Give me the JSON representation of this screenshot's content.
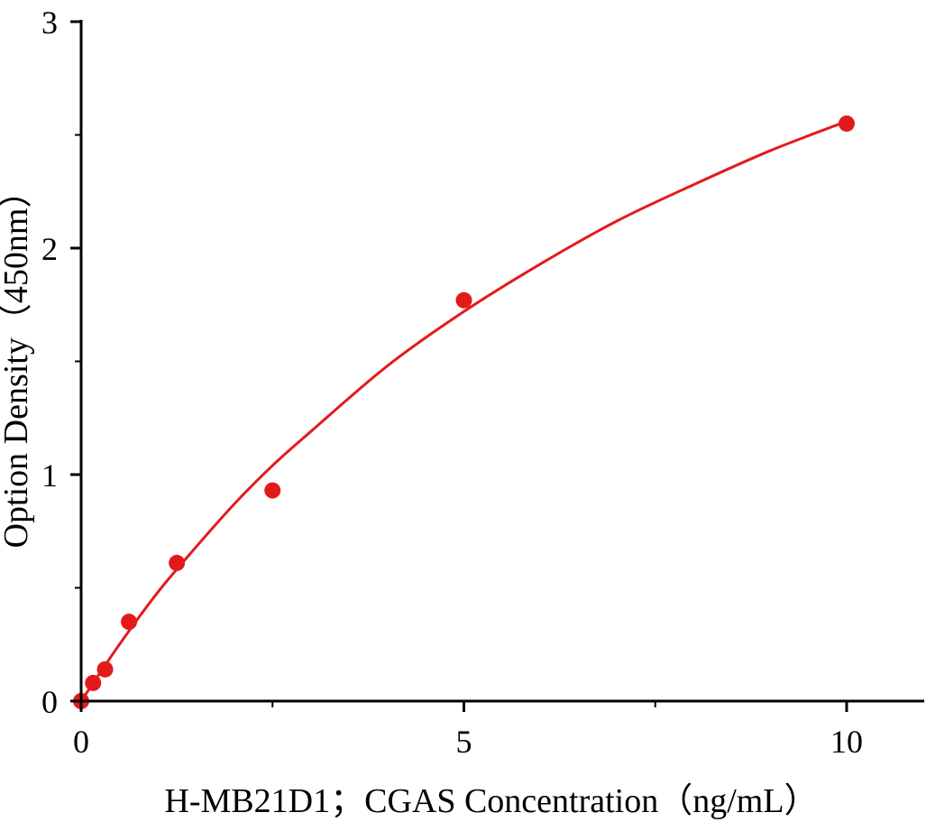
{
  "chart_data": {
    "type": "scatter",
    "title": "",
    "xlabel": "H-MB21D1；CGAS Concentration（ng/mL）",
    "ylabel": "Option Density（450nm）",
    "xlim": [
      0,
      11
    ],
    "ylim": [
      0,
      3
    ],
    "x_ticks": [
      0,
      5,
      10
    ],
    "x_tick_labels": [
      "0",
      "5",
      "10"
    ],
    "x_minor_ticks": [
      2.5,
      7.5
    ],
    "y_ticks": [
      0,
      1,
      2,
      3
    ],
    "y_tick_labels": [
      "0",
      "1",
      "2",
      "3"
    ],
    "y_minor_ticks": [
      0.5,
      1.5,
      2.5
    ],
    "grid": false,
    "color": "#e31a1c",
    "points": [
      {
        "x": 0,
        "y": 0
      },
      {
        "x": 0.156,
        "y": 0.08
      },
      {
        "x": 0.3125,
        "y": 0.14
      },
      {
        "x": 0.625,
        "y": 0.35
      },
      {
        "x": 1.25,
        "y": 0.61
      },
      {
        "x": 2.5,
        "y": 0.93
      },
      {
        "x": 5,
        "y": 1.77
      },
      {
        "x": 10,
        "y": 2.55
      }
    ],
    "fit_curve": [
      {
        "x": 0,
        "y": 0
      },
      {
        "x": 0.5,
        "y": 0.25
      },
      {
        "x": 1,
        "y": 0.48
      },
      {
        "x": 1.5,
        "y": 0.68
      },
      {
        "x": 2,
        "y": 0.87
      },
      {
        "x": 2.5,
        "y": 1.04
      },
      {
        "x": 3,
        "y": 1.19
      },
      {
        "x": 4,
        "y": 1.48
      },
      {
        "x": 5,
        "y": 1.72
      },
      {
        "x": 6,
        "y": 1.93
      },
      {
        "x": 7,
        "y": 2.12
      },
      {
        "x": 8,
        "y": 2.28
      },
      {
        "x": 9,
        "y": 2.43
      },
      {
        "x": 10,
        "y": 2.56
      }
    ]
  }
}
